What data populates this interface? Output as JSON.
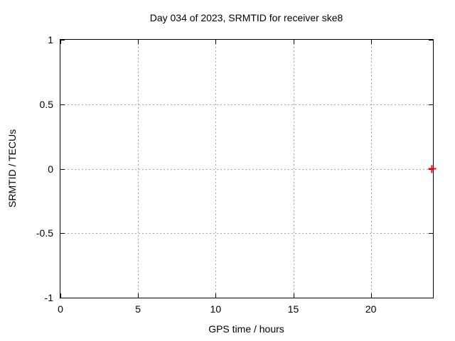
{
  "chart_data": {
    "type": "scatter",
    "title": "Day 034 of 2023, SRMTID for receiver ske8",
    "xlabel": "GPS time / hours",
    "ylabel": "SRMTID / TECUs",
    "xlim": [
      0,
      24
    ],
    "ylim": [
      -1,
      1
    ],
    "xticks": [
      0,
      5,
      10,
      15,
      20
    ],
    "xticklabels": [
      "0",
      "5",
      "10",
      "15",
      "20"
    ],
    "yticks": [
      1,
      0.5,
      0,
      -0.5,
      -1
    ],
    "yticklabels": [
      "1",
      "0.5",
      "0",
      "-0.5",
      "-1"
    ],
    "grid": true,
    "legend": "none",
    "colors": {
      "grid": "#a6a6a6",
      "axis": "#000000",
      "background": "#ffffff",
      "series1": "#ff0000"
    },
    "series": [
      {
        "name": "SRMTID",
        "marker": "plus",
        "color": "#ff0000",
        "points": [
          {
            "x": 23.95,
            "y": 0.0
          }
        ]
      }
    ]
  }
}
